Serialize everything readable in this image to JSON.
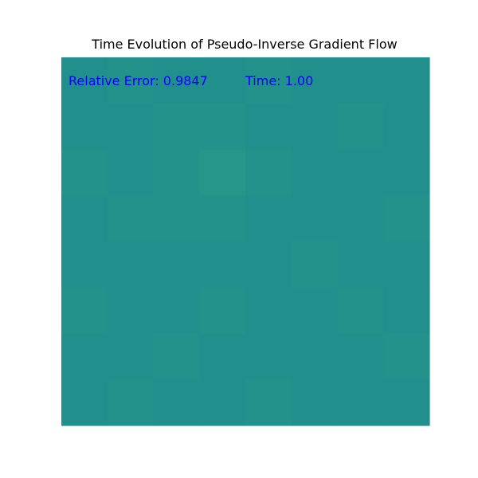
{
  "chart_data": {
    "type": "heatmap",
    "title": "Time Evolution of Pseudo-Inverse Gradient Flow",
    "xlabel": "",
    "ylabel": "",
    "axes_visible": false,
    "colormap": "viridis",
    "fill_color": "#21908d",
    "annotations": [
      {
        "id": "relative-error",
        "text": "Relative Error: 0.9847",
        "color": "#0000ff"
      },
      {
        "id": "time",
        "text": "Time: 1.00",
        "color": "#0000ff"
      }
    ],
    "values": [
      [
        0.5,
        0.51,
        0.5,
        0.5,
        0.51,
        0.5,
        0.5,
        0.5
      ],
      [
        0.5,
        0.5,
        0.51,
        0.51,
        0.5,
        0.5,
        0.51,
        0.5
      ],
      [
        0.51,
        0.5,
        0.51,
        0.52,
        0.51,
        0.5,
        0.5,
        0.5
      ],
      [
        0.5,
        0.51,
        0.51,
        0.51,
        0.5,
        0.5,
        0.5,
        0.51
      ],
      [
        0.5,
        0.5,
        0.5,
        0.5,
        0.5,
        0.51,
        0.5,
        0.5
      ],
      [
        0.51,
        0.5,
        0.5,
        0.51,
        0.5,
        0.5,
        0.51,
        0.5
      ],
      [
        0.5,
        0.5,
        0.51,
        0.5,
        0.5,
        0.5,
        0.5,
        0.51
      ],
      [
        0.5,
        0.51,
        0.5,
        0.5,
        0.51,
        0.5,
        0.5,
        0.5
      ]
    ]
  }
}
